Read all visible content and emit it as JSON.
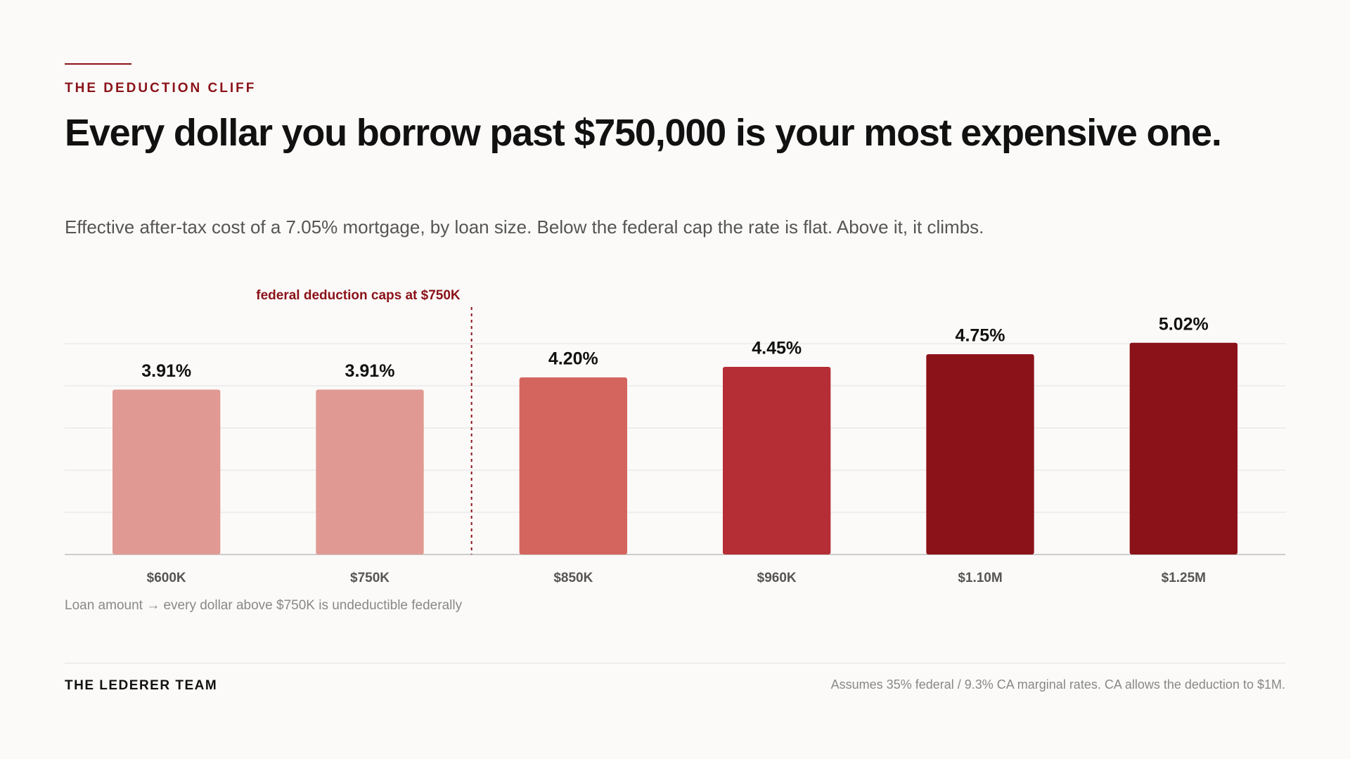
{
  "kicker": "THE DEDUCTION CLIFF",
  "title": "Every dollar you borrow past $750,000 is your most expensive one.",
  "subtitle": "Effective after-tax cost of a 7.05% mortgage, by loan size. Below the federal cap the rate is flat. Above it, it climbs.",
  "chart_data": {
    "type": "bar",
    "annotation": "federal deduction caps at $750K",
    "x_label": "Loan amount → every dollar above $750K is undeductible federally",
    "categories": [
      "$600K",
      "$750K",
      "$850K",
      "$960K",
      "$1.10M",
      "$1.25M"
    ],
    "values": [
      3.91,
      3.91,
      4.2,
      4.45,
      4.75,
      5.02
    ],
    "value_labels": [
      "3.91%",
      "3.91%",
      "4.20%",
      "4.45%",
      "4.75%",
      "5.02%"
    ],
    "colors": [
      "#e09a93",
      "#e09a93",
      "#d4655e",
      "#b52d35",
      "#8b1219",
      "#8b1219"
    ],
    "ylim": [
      0,
      5
    ],
    "yticks": [
      0,
      1,
      2,
      3,
      4,
      5
    ],
    "grid": true
  },
  "footer": {
    "brand": "THE LEDERER TEAM",
    "note": "Assumes 35% federal / 9.3% CA marginal rates. CA allows the deduction to $1M."
  }
}
